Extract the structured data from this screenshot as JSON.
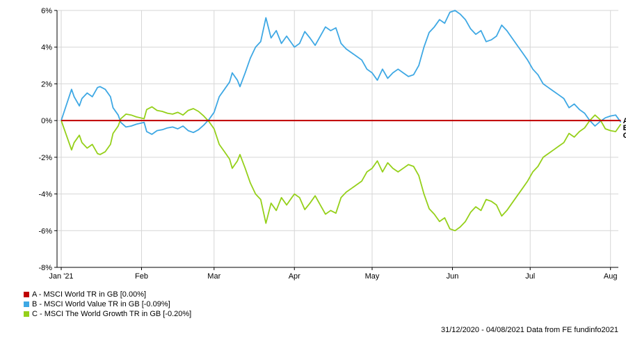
{
  "chart_data": {
    "type": "line",
    "ylim": [
      -8,
      6
    ],
    "y_ticks": [
      -8,
      -6,
      -4,
      -2,
      0,
      2,
      4,
      6
    ],
    "y_tick_format": "%",
    "x_ticks": [
      {
        "label": "Jan '21",
        "day": 0
      },
      {
        "label": "Feb",
        "day": 31
      },
      {
        "label": "Mar",
        "day": 59
      },
      {
        "label": "Apr",
        "day": 90
      },
      {
        "label": "May",
        "day": 120
      },
      {
        "label": "Jun",
        "day": 151
      },
      {
        "label": "Jul",
        "day": 181
      },
      {
        "label": "Aug",
        "day": 212
      }
    ],
    "grid": true,
    "legend_position": "bottom-left",
    "series": [
      {
        "name": "A - MSCI World TR in GB [0.00%]",
        "end_label": "A",
        "color": "#c00000",
        "x": [
          "2020-12-31",
          "2021-08-04"
        ],
        "values": [
          0.0,
          0.0
        ]
      },
      {
        "name": "B - MSCI World Value TR in GB [-0.09%]",
        "end_label": "B",
        "color": "#3ea8e4",
        "x": [
          "2020-12-31",
          "2021-01-04",
          "2021-01-05",
          "2021-01-07",
          "2021-01-08",
          "2021-01-10",
          "2021-01-12",
          "2021-01-14",
          "2021-01-15",
          "2021-01-17",
          "2021-01-19",
          "2021-01-20",
          "2021-01-22",
          "2021-01-23",
          "2021-01-25",
          "2021-01-27",
          "2021-01-29",
          "2021-02-01",
          "2021-02-02",
          "2021-02-04",
          "2021-02-06",
          "2021-02-08",
          "2021-02-10",
          "2021-02-12",
          "2021-02-14",
          "2021-02-16",
          "2021-02-18",
          "2021-02-20",
          "2021-02-22",
          "2021-02-24",
          "2021-02-26",
          "2021-02-28",
          "2021-03-02",
          "2021-03-04",
          "2021-03-06",
          "2021-03-07",
          "2021-03-09",
          "2021-03-10",
          "2021-03-12",
          "2021-03-14",
          "2021-03-16",
          "2021-03-18",
          "2021-03-20",
          "2021-03-22",
          "2021-03-24",
          "2021-03-26",
          "2021-03-28",
          "2021-03-30",
          "2021-03-31",
          "2021-04-02",
          "2021-04-04",
          "2021-04-06",
          "2021-04-08",
          "2021-04-10",
          "2021-04-12",
          "2021-04-14",
          "2021-04-16",
          "2021-04-18",
          "2021-04-20",
          "2021-04-22",
          "2021-04-24",
          "2021-04-26",
          "2021-04-28",
          "2021-04-30",
          "2021-05-02",
          "2021-05-04",
          "2021-05-06",
          "2021-05-08",
          "2021-05-10",
          "2021-05-12",
          "2021-05-14",
          "2021-05-16",
          "2021-05-18",
          "2021-05-20",
          "2021-05-22",
          "2021-05-24",
          "2021-05-26",
          "2021-05-28",
          "2021-05-30",
          "2021-06-01",
          "2021-06-03",
          "2021-06-05",
          "2021-06-07",
          "2021-06-09",
          "2021-06-11",
          "2021-06-13",
          "2021-06-15",
          "2021-06-17",
          "2021-06-19",
          "2021-06-21",
          "2021-06-23",
          "2021-06-25",
          "2021-06-27",
          "2021-06-29",
          "2021-07-01",
          "2021-07-03",
          "2021-07-05",
          "2021-07-07",
          "2021-07-09",
          "2021-07-11",
          "2021-07-13",
          "2021-07-15",
          "2021-07-17",
          "2021-07-19",
          "2021-07-21",
          "2021-07-23",
          "2021-07-25",
          "2021-07-27",
          "2021-07-29",
          "2021-07-31",
          "2021-08-02",
          "2021-08-04"
        ],
        "values": [
          0.0,
          1.7,
          1.3,
          0.8,
          1.2,
          1.5,
          1.3,
          1.8,
          1.85,
          1.7,
          1.3,
          0.7,
          0.3,
          -0.1,
          -0.35,
          -0.3,
          -0.2,
          -0.1,
          -0.6,
          -0.75,
          -0.55,
          -0.5,
          -0.4,
          -0.35,
          -0.45,
          -0.3,
          -0.55,
          -0.65,
          -0.5,
          -0.25,
          0.05,
          0.45,
          1.3,
          1.7,
          2.1,
          2.6,
          2.2,
          1.85,
          2.6,
          3.4,
          4.0,
          4.3,
          5.6,
          4.5,
          4.9,
          4.2,
          4.6,
          4.2,
          4.0,
          4.2,
          4.85,
          4.5,
          4.1,
          4.6,
          5.1,
          4.9,
          5.05,
          4.2,
          3.9,
          3.7,
          3.5,
          3.3,
          2.8,
          2.6,
          2.2,
          2.8,
          2.3,
          2.6,
          2.8,
          2.6,
          2.4,
          2.5,
          3.0,
          4.0,
          4.8,
          5.1,
          5.5,
          5.3,
          5.9,
          6.0,
          5.8,
          5.5,
          5.0,
          4.7,
          4.9,
          4.3,
          4.4,
          4.6,
          5.2,
          4.9,
          4.5,
          4.1,
          3.7,
          3.3,
          2.8,
          2.5,
          2.0,
          1.8,
          1.6,
          1.4,
          1.2,
          0.7,
          0.9,
          0.6,
          0.4,
          0.0,
          -0.3,
          -0.05,
          0.15,
          0.25,
          0.3,
          -0.09
        ]
      },
      {
        "name": "C - MSCI The World Growth TR in GB [-0.20%]",
        "end_label": "C",
        "color": "#95d01a",
        "x": [
          "2020-12-31",
          "2021-01-04",
          "2021-01-05",
          "2021-01-07",
          "2021-01-08",
          "2021-01-10",
          "2021-01-12",
          "2021-01-14",
          "2021-01-15",
          "2021-01-17",
          "2021-01-19",
          "2021-01-20",
          "2021-01-22",
          "2021-01-23",
          "2021-01-25",
          "2021-01-27",
          "2021-01-29",
          "2021-02-01",
          "2021-02-02",
          "2021-02-04",
          "2021-02-06",
          "2021-02-08",
          "2021-02-10",
          "2021-02-12",
          "2021-02-14",
          "2021-02-16",
          "2021-02-18",
          "2021-02-20",
          "2021-02-22",
          "2021-02-24",
          "2021-02-26",
          "2021-02-28",
          "2021-03-02",
          "2021-03-04",
          "2021-03-06",
          "2021-03-07",
          "2021-03-09",
          "2021-03-10",
          "2021-03-12",
          "2021-03-14",
          "2021-03-16",
          "2021-03-18",
          "2021-03-20",
          "2021-03-22",
          "2021-03-24",
          "2021-03-26",
          "2021-03-28",
          "2021-03-30",
          "2021-03-31",
          "2021-04-02",
          "2021-04-04",
          "2021-04-06",
          "2021-04-08",
          "2021-04-10",
          "2021-04-12",
          "2021-04-14",
          "2021-04-16",
          "2021-04-18",
          "2021-04-20",
          "2021-04-22",
          "2021-04-24",
          "2021-04-26",
          "2021-04-28",
          "2021-04-30",
          "2021-05-02",
          "2021-05-04",
          "2021-05-06",
          "2021-05-08",
          "2021-05-10",
          "2021-05-12",
          "2021-05-14",
          "2021-05-16",
          "2021-05-18",
          "2021-05-20",
          "2021-05-22",
          "2021-05-24",
          "2021-05-26",
          "2021-05-28",
          "2021-05-30",
          "2021-06-01",
          "2021-06-03",
          "2021-06-05",
          "2021-06-07",
          "2021-06-09",
          "2021-06-11",
          "2021-06-13",
          "2021-06-15",
          "2021-06-17",
          "2021-06-19",
          "2021-06-21",
          "2021-06-23",
          "2021-06-25",
          "2021-06-27",
          "2021-06-29",
          "2021-07-01",
          "2021-07-03",
          "2021-07-05",
          "2021-07-07",
          "2021-07-09",
          "2021-07-11",
          "2021-07-13",
          "2021-07-15",
          "2021-07-17",
          "2021-07-19",
          "2021-07-21",
          "2021-07-23",
          "2021-07-25",
          "2021-07-27",
          "2021-07-29",
          "2021-07-31",
          "2021-08-02",
          "2021-08-04"
        ],
        "values": [
          0.0,
          -1.6,
          -1.2,
          -0.8,
          -1.2,
          -1.5,
          -1.3,
          -1.8,
          -1.85,
          -1.7,
          -1.3,
          -0.7,
          -0.3,
          0.1,
          0.35,
          0.3,
          0.2,
          0.1,
          0.6,
          0.75,
          0.55,
          0.5,
          0.4,
          0.35,
          0.45,
          0.3,
          0.55,
          0.65,
          0.5,
          0.25,
          -0.05,
          -0.45,
          -1.3,
          -1.7,
          -2.1,
          -2.6,
          -2.2,
          -1.85,
          -2.6,
          -3.4,
          -4.0,
          -4.3,
          -5.6,
          -4.5,
          -4.9,
          -4.2,
          -4.6,
          -4.2,
          -4.0,
          -4.2,
          -4.85,
          -4.5,
          -4.1,
          -4.6,
          -5.1,
          -4.9,
          -5.05,
          -4.2,
          -3.9,
          -3.7,
          -3.5,
          -3.3,
          -2.8,
          -2.6,
          -2.2,
          -2.8,
          -2.3,
          -2.6,
          -2.8,
          -2.6,
          -2.4,
          -2.5,
          -3.0,
          -4.0,
          -4.8,
          -5.1,
          -5.5,
          -5.3,
          -5.9,
          -6.0,
          -5.8,
          -5.5,
          -5.0,
          -4.7,
          -4.9,
          -4.3,
          -4.4,
          -4.6,
          -5.2,
          -4.9,
          -4.5,
          -4.1,
          -3.7,
          -3.3,
          -2.8,
          -2.5,
          -2.0,
          -1.8,
          -1.6,
          -1.4,
          -1.2,
          -0.7,
          -0.9,
          -0.6,
          -0.4,
          0.0,
          0.3,
          0.05,
          -0.45,
          -0.55,
          -0.6,
          -0.2
        ]
      }
    ]
  },
  "footer": "31/12/2020 - 04/08/2021 Data from FE fundinfo2021"
}
